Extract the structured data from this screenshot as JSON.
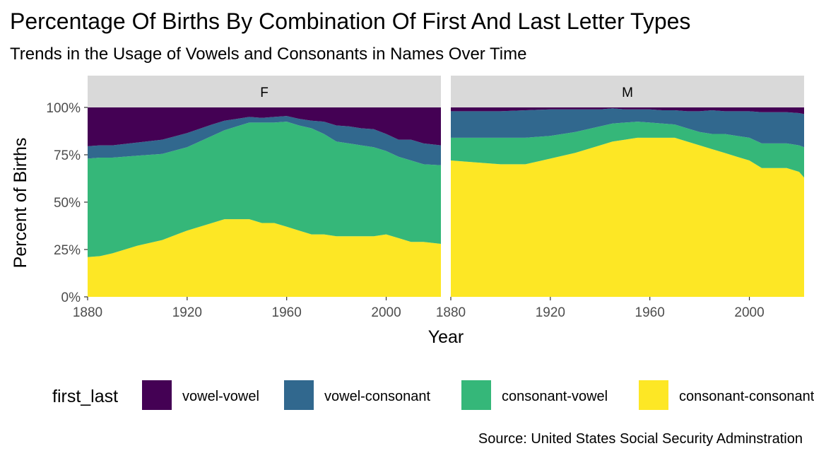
{
  "chart_data": {
    "type": "area",
    "stacking": "percent",
    "title": "Percentage Of Births By Combination Of First And Last Letter Types",
    "subtitle": "Trends in the Usage of Vowels and Consonants in Names Over Time",
    "xlabel": "Year",
    "ylabel": "Percent of Births",
    "caption": "Source: United States Social Security Adminstration",
    "xlim": [
      1880,
      2022
    ],
    "ylim": [
      0,
      1
    ],
    "x_ticks": [
      1880,
      1920,
      1960,
      2000
    ],
    "x_tick_labels": [
      "1880",
      "1920",
      "1960",
      "2000"
    ],
    "y_ticks": [
      0,
      0.25,
      0.5,
      0.75,
      1.0
    ],
    "y_tick_labels": [
      "0%",
      "25%",
      "50%",
      "75%",
      "100%"
    ],
    "legend": {
      "title": "first_last",
      "position": "bottom",
      "entries": [
        "vowel-vowel",
        "vowel-consonant",
        "consonant-vowel",
        "consonant-consonant"
      ]
    },
    "colors": {
      "vowel-vowel": "#440154",
      "vowel-consonant": "#31688e",
      "consonant-vowel": "#35b779",
      "consonant-consonant": "#fde725"
    },
    "stack_order_bottom_to_top": [
      "consonant-consonant",
      "consonant-vowel",
      "vowel-consonant",
      "vowel-vowel"
    ],
    "panels": [
      {
        "label": "F",
        "x": [
          1880,
          1885,
          1890,
          1900,
          1910,
          1920,
          1930,
          1935,
          1940,
          1945,
          1950,
          1955,
          1960,
          1965,
          1970,
          1975,
          1980,
          1985,
          1990,
          1995,
          2000,
          2005,
          2010,
          2015,
          2022
        ],
        "series": [
          {
            "name": "consonant-consonant",
            "values": [
              0.21,
              0.215,
              0.23,
              0.27,
              0.3,
              0.35,
              0.39,
              0.41,
              0.41,
              0.41,
              0.39,
              0.39,
              0.37,
              0.35,
              0.33,
              0.33,
              0.32,
              0.32,
              0.32,
              0.32,
              0.33,
              0.31,
              0.29,
              0.29,
              0.28
            ]
          },
          {
            "name": "consonant-vowel",
            "values": [
              0.52,
              0.52,
              0.505,
              0.475,
              0.455,
              0.44,
              0.46,
              0.47,
              0.49,
              0.51,
              0.53,
              0.53,
              0.555,
              0.555,
              0.56,
              0.53,
              0.5,
              0.49,
              0.48,
              0.47,
              0.44,
              0.43,
              0.43,
              0.41,
              0.415
            ]
          },
          {
            "name": "vowel-consonant",
            "values": [
              0.065,
              0.065,
              0.065,
              0.07,
              0.075,
              0.075,
              0.06,
              0.05,
              0.04,
              0.03,
              0.025,
              0.03,
              0.03,
              0.035,
              0.04,
              0.065,
              0.085,
              0.09,
              0.09,
              0.095,
              0.09,
              0.09,
              0.11,
              0.11,
              0.105
            ]
          },
          {
            "name": "vowel-vowel",
            "values": [
              0.205,
              0.2,
              0.2,
              0.185,
              0.17,
              0.135,
              0.09,
              0.07,
              0.06,
              0.05,
              0.055,
              0.05,
              0.045,
              0.06,
              0.07,
              0.075,
              0.095,
              0.1,
              0.11,
              0.115,
              0.14,
              0.17,
              0.17,
              0.19,
              0.2
            ]
          }
        ]
      },
      {
        "label": "M",
        "x": [
          1880,
          1890,
          1900,
          1910,
          1920,
          1930,
          1940,
          1945,
          1950,
          1955,
          1960,
          1965,
          1970,
          1975,
          1980,
          1985,
          1990,
          1995,
          2000,
          2005,
          2010,
          2015,
          2020,
          2022
        ],
        "series": [
          {
            "name": "consonant-consonant",
            "values": [
              0.72,
              0.71,
              0.7,
              0.7,
              0.73,
              0.76,
              0.8,
              0.82,
              0.83,
              0.84,
              0.84,
              0.84,
              0.84,
              0.82,
              0.8,
              0.78,
              0.76,
              0.74,
              0.72,
              0.68,
              0.68,
              0.68,
              0.66,
              0.63
            ]
          },
          {
            "name": "consonant-vowel",
            "values": [
              0.12,
              0.13,
              0.14,
              0.14,
              0.12,
              0.11,
              0.1,
              0.095,
              0.09,
              0.085,
              0.08,
              0.075,
              0.07,
              0.07,
              0.07,
              0.08,
              0.1,
              0.11,
              0.12,
              0.13,
              0.13,
              0.13,
              0.14,
              0.16
            ]
          },
          {
            "name": "vowel-consonant",
            "values": [
              0.14,
              0.14,
              0.14,
              0.145,
              0.14,
              0.12,
              0.09,
              0.08,
              0.07,
              0.065,
              0.07,
              0.07,
              0.075,
              0.09,
              0.11,
              0.125,
              0.12,
              0.13,
              0.14,
              0.165,
              0.165,
              0.165,
              0.17,
              0.175
            ]
          },
          {
            "name": "vowel-vowel",
            "values": [
              0.02,
              0.02,
              0.02,
              0.015,
              0.01,
              0.01,
              0.01,
              0.005,
              0.01,
              0.01,
              0.01,
              0.015,
              0.015,
              0.02,
              0.02,
              0.015,
              0.02,
              0.02,
              0.02,
              0.025,
              0.025,
              0.025,
              0.03,
              0.035
            ]
          }
        ]
      }
    ]
  }
}
